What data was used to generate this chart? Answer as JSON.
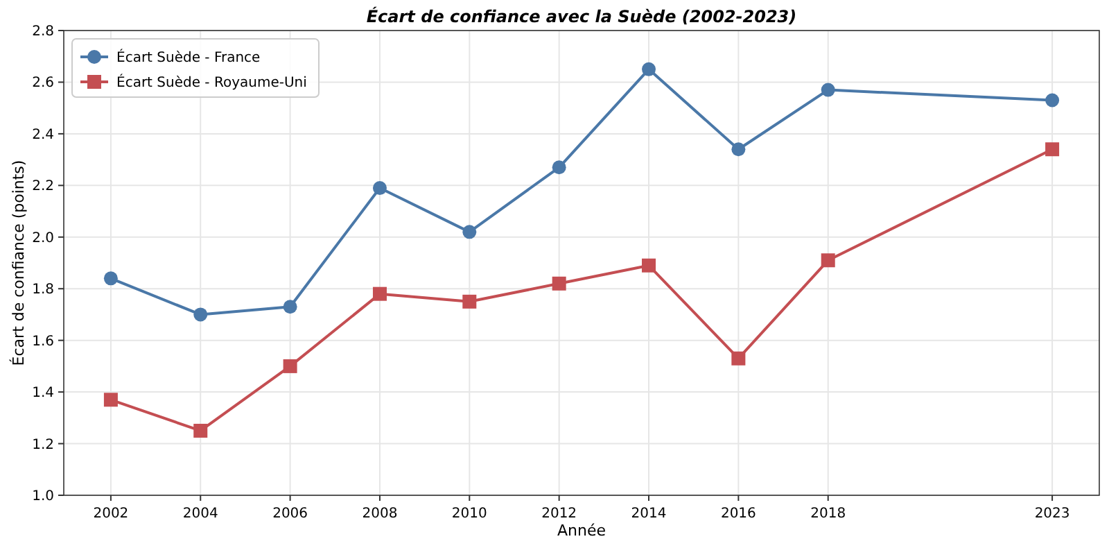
{
  "chart_data": {
    "type": "line",
    "title": "Écart de confiance avec la Suède (2002-2023)",
    "xlabel": "Année",
    "ylabel": "Écart de confiance (points)",
    "x": [
      2002,
      2004,
      2006,
      2008,
      2010,
      2012,
      2014,
      2016,
      2018,
      2023
    ],
    "series": [
      {
        "name": "Écart Suède - France",
        "color": "#4a78a8",
        "marker": "circle",
        "values": [
          1.84,
          1.7,
          1.73,
          2.19,
          2.02,
          2.27,
          2.65,
          2.34,
          2.57,
          2.53
        ]
      },
      {
        "name": "Écart Suède - Royaume-Uni",
        "color": "#c44e52",
        "marker": "square",
        "values": [
          1.37,
          1.25,
          1.5,
          1.78,
          1.75,
          1.82,
          1.89,
          1.53,
          1.91,
          2.34
        ]
      }
    ],
    "xlim": [
      2000.95,
      2024.05
    ],
    "xticks": [
      2002,
      2004,
      2006,
      2008,
      2010,
      2012,
      2014,
      2016,
      2018,
      2023
    ],
    "ylim": [
      1.0,
      2.8
    ],
    "yticks": [
      {
        "value": 1,
        "label": "1.0"
      },
      1.2,
      1.4,
      1.6,
      1.8,
      {
        "value": 2,
        "label": "2.0"
      },
      2.2,
      2.4,
      2.6,
      2.8
    ],
    "grid": true,
    "legend": "top left",
    "line_style": "solid"
  }
}
